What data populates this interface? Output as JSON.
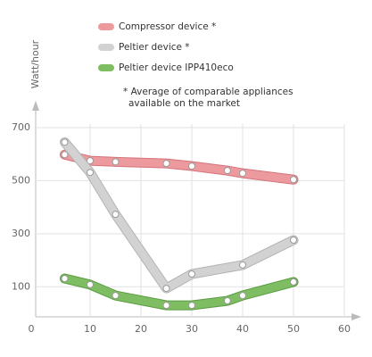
{
  "chart_data": {
    "type": "line",
    "y_label": "Watt/hour",
    "note": [
      "* Average of comparable appliances",
      "available on the market"
    ],
    "xlim": [
      0,
      60
    ],
    "xticks": [
      0,
      10,
      20,
      30,
      40,
      50,
      60
    ],
    "ylim": [
      0,
      700
    ],
    "yticks": [
      100,
      300,
      500,
      700
    ],
    "grid": true,
    "series": [
      {
        "name": "Compressor device *",
        "color": "#ec9a9e",
        "outline": "#d4737a",
        "x": [
          5,
          10,
          15,
          25,
          30,
          37,
          40,
          50
        ],
        "values": [
          598,
          575,
          571,
          565,
          555,
          538,
          528,
          504
        ]
      },
      {
        "name": "Peltier device *",
        "color": "#d2d2d2",
        "outline": "#b3b3b3",
        "x": [
          5,
          10,
          15,
          25,
          30,
          40,
          50
        ],
        "values": [
          645,
          531,
          373,
          94,
          148,
          182,
          276
        ]
      },
      {
        "name": "Peltier device IPP410eco",
        "color": "#7fbd63",
        "outline": "#5c9c43",
        "x": [
          5,
          10,
          15,
          25,
          30,
          37,
          40,
          50
        ],
        "values": [
          131,
          108,
          67,
          30,
          30,
          47,
          67,
          118
        ]
      }
    ]
  }
}
